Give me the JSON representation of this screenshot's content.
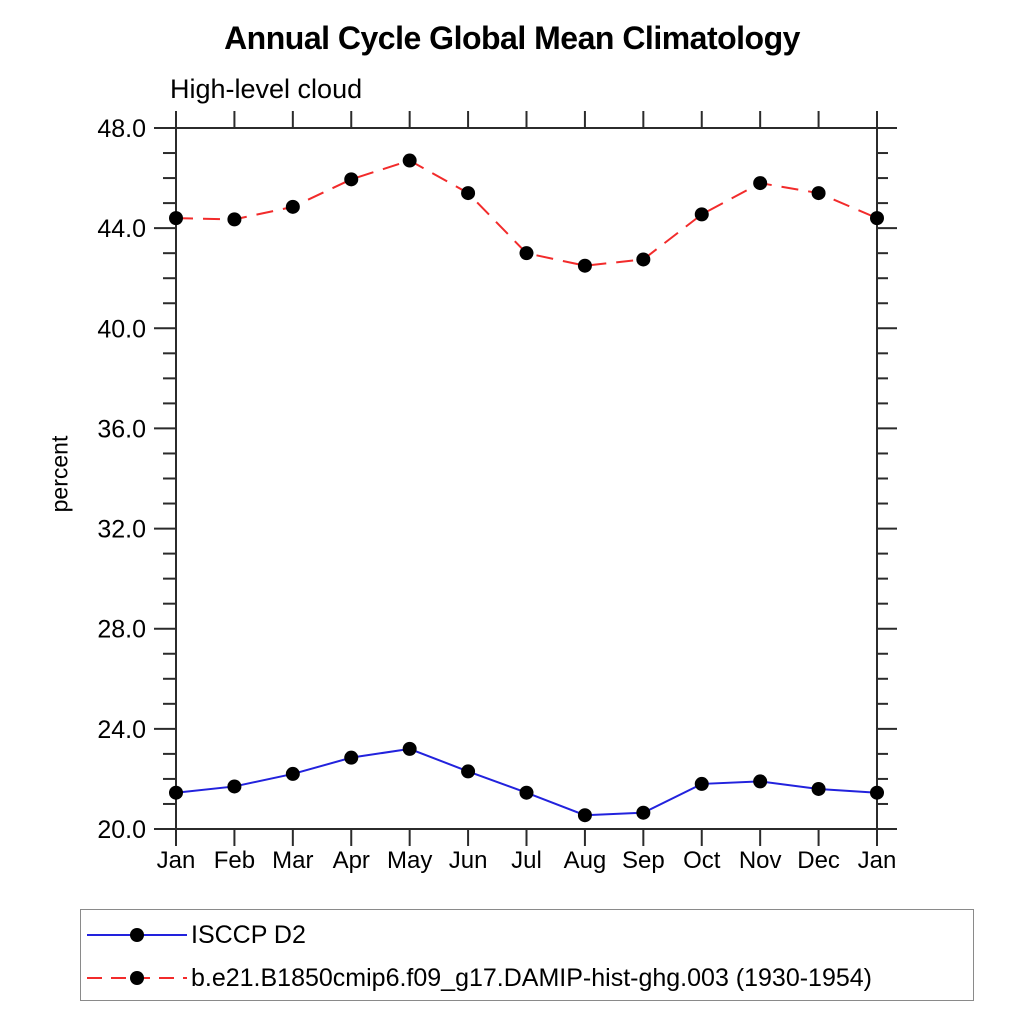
{
  "title": "Annual Cycle Global Mean Climatology",
  "subtitle": "High-level cloud",
  "ylabel": "percent",
  "colors": {
    "axis": "#2b2b2b",
    "text": "#000000",
    "legend_border": "#8a8a8a",
    "series1": "#2222dd",
    "series2": "#f22b2b",
    "marker": "#000000"
  },
  "chart_data": {
    "type": "line",
    "title": "Annual Cycle Global Mean Climatology",
    "subtitle": "High-level cloud",
    "xlabel": "",
    "ylabel": "percent",
    "x_categories": [
      "Jan",
      "Feb",
      "Mar",
      "Apr",
      "May",
      "Jun",
      "Jul",
      "Aug",
      "Sep",
      "Oct",
      "Nov",
      "Dec",
      "Jan"
    ],
    "ylim": [
      20.0,
      48.0
    ],
    "ytick_step": 4.0,
    "yminor_step": 1.0,
    "ytick_labels": [
      "20.0",
      "24.0",
      "28.0",
      "32.0",
      "36.0",
      "40.0",
      "44.0",
      "48.0"
    ],
    "grid": false,
    "legend_position": "bottom-left boxed",
    "series": [
      {
        "name": "ISCCP D2",
        "line_style": "solid",
        "color": "#2222dd",
        "marker": "filled-circle",
        "marker_color": "#000000",
        "values": [
          21.45,
          21.7,
          22.2,
          22.85,
          23.2,
          22.3,
          21.45,
          20.55,
          20.65,
          21.8,
          21.9,
          21.6,
          21.45
        ]
      },
      {
        "name": "b.e21.B1850cmip6.f09_g17.DAMIP-hist-ghg.003 (1930-1954)",
        "line_style": "dashed",
        "color": "#f22b2b",
        "marker": "filled-circle",
        "marker_color": "#000000",
        "values": [
          44.4,
          44.35,
          44.85,
          45.95,
          46.7,
          45.4,
          43.0,
          42.5,
          42.75,
          44.55,
          45.8,
          45.4,
          44.4
        ]
      }
    ]
  }
}
